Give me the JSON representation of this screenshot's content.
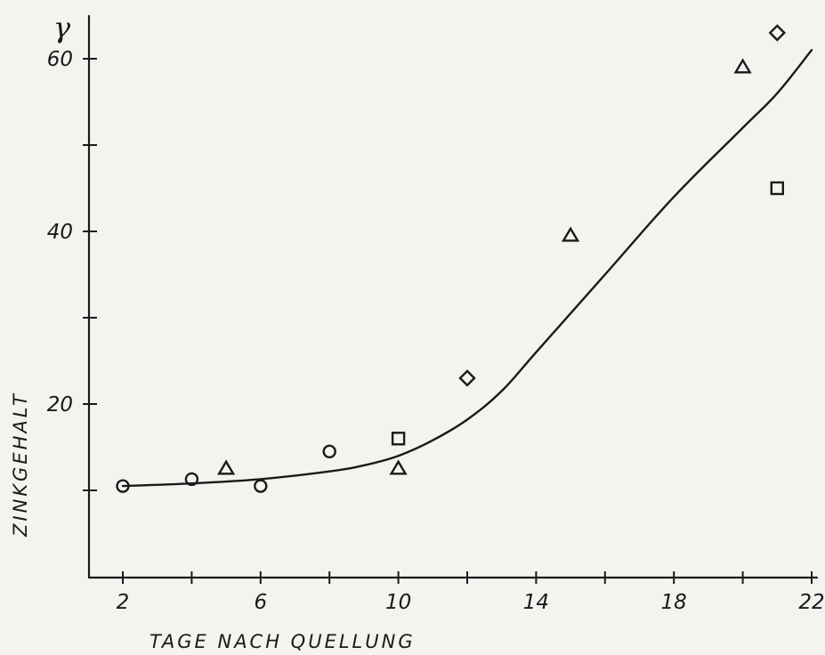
{
  "chart_data": {
    "type": "scatter",
    "title": "",
    "xlabel": "TAGE NACH QUELLUNG",
    "ylabel": "ZINKGEHALT",
    "y_unit": "γ",
    "xlim": [
      0,
      22
    ],
    "ylim": [
      -10,
      65
    ],
    "x_tick_labels": [
      {
        "value": 2,
        "label": "2"
      },
      {
        "value": 6,
        "label": "6"
      },
      {
        "value": 10,
        "label": "10"
      },
      {
        "value": 14,
        "label": "14"
      },
      {
        "value": 18,
        "label": "18"
      },
      {
        "value": 22,
        "label": "22"
      }
    ],
    "x_minor_ticks": [
      4,
      8,
      12,
      16,
      20
    ],
    "y_tick_labels": [
      {
        "value": 20,
        "label": "20"
      },
      {
        "value": 40,
        "label": "40"
      },
      {
        "value": 60,
        "label": "60"
      }
    ],
    "y_minor_ticks": [
      10,
      30,
      50
    ],
    "grid": false,
    "legend": "none",
    "series": [
      {
        "marker": "circle",
        "points": [
          [
            2,
            10.5
          ],
          [
            4,
            11.3
          ],
          [
            6,
            10.5
          ],
          [
            8,
            14.5
          ]
        ]
      },
      {
        "marker": "triangle",
        "points": [
          [
            5,
            12.5
          ],
          [
            10,
            12.5
          ],
          [
            15,
            39.5
          ],
          [
            20,
            59
          ]
        ]
      },
      {
        "marker": "square",
        "points": [
          [
            10,
            16
          ],
          [
            21,
            45
          ]
        ]
      },
      {
        "marker": "diamond",
        "points": [
          [
            12,
            23
          ],
          [
            21,
            63
          ]
        ]
      }
    ],
    "fit_curve": {
      "points": [
        [
          2,
          10.5
        ],
        [
          4,
          10.8
        ],
        [
          6,
          11.3
        ],
        [
          8,
          12.2
        ],
        [
          9,
          12.9
        ],
        [
          10,
          14
        ],
        [
          11,
          15.8
        ],
        [
          12,
          18.2
        ],
        [
          13,
          21.5
        ],
        [
          14,
          26
        ],
        [
          16,
          35
        ],
        [
          18,
          44
        ],
        [
          20,
          52
        ],
        [
          21,
          56
        ],
        [
          22,
          61
        ]
      ]
    }
  }
}
